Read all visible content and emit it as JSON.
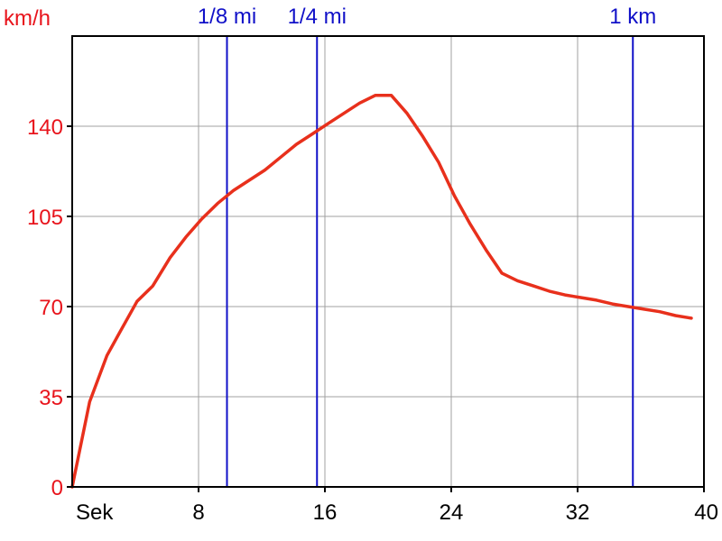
{
  "chart_data": {
    "type": "line",
    "ylabel": "km/h",
    "xlabel": "Sek",
    "xlim": [
      0,
      40
    ],
    "ylim": [
      0,
      175
    ],
    "x_ticks": [
      8,
      16,
      24,
      32,
      40
    ],
    "y_ticks": [
      0,
      35,
      70,
      105,
      140
    ],
    "grid": true,
    "colors": {
      "line": "#e8301c",
      "markers": "#1010c8",
      "axis": "#000000",
      "grid": "#a0a0a0",
      "y_ticks": "#e8141c"
    },
    "series": [
      {
        "x": [
          0,
          1.1,
          2.2,
          3.1,
          4.1,
          5.1,
          6.2,
          7.2,
          8.2,
          9.2,
          10.2,
          11.2,
          12.2,
          13.2,
          14.2,
          15.2,
          16.2,
          17.2,
          18.2,
          19.2,
          20.2,
          21.2,
          22.2,
          23.2,
          24.2,
          25.2,
          26.2,
          27.2,
          28.2,
          29.2,
          30.2,
          31.2,
          32.2,
          33.2,
          34.2,
          35.2,
          36.2,
          37.2,
          38.2,
          39.2
        ],
        "y": [
          0,
          33,
          51,
          61,
          72,
          78,
          89,
          97,
          104,
          110,
          115,
          119,
          123,
          128,
          133,
          137,
          141,
          145,
          149,
          152,
          152,
          145,
          136,
          126,
          113,
          102,
          92,
          83,
          80,
          78,
          76,
          74.5,
          73.5,
          72.5,
          71,
          70,
          69,
          68,
          66.5,
          65.5
        ]
      }
    ],
    "distance_markers": [
      {
        "label": "1/8 mi",
        "x": 9.8
      },
      {
        "label": "1/4 mi",
        "x": 15.5
      },
      {
        "label": "1 km",
        "x": 35.5
      }
    ]
  }
}
